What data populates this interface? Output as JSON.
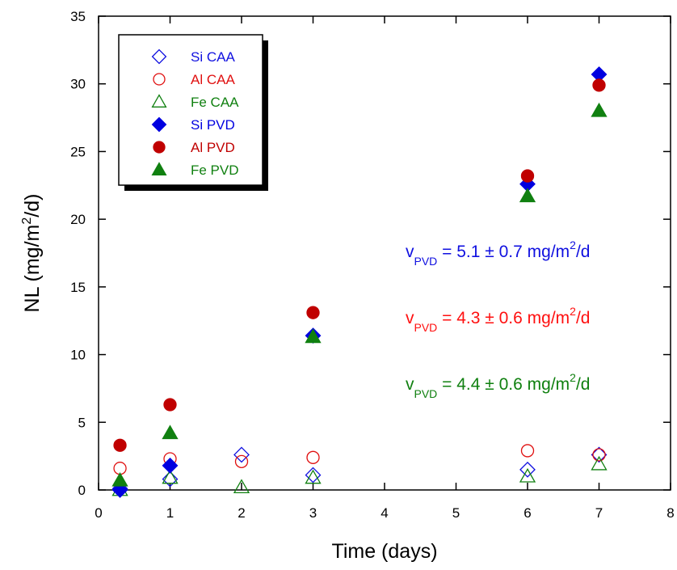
{
  "chart_data": {
    "type": "scatter",
    "x_label": "Time (days)",
    "y_label": [
      "NL (mg/m",
      "2",
      "/d)"
    ],
    "xlim": [
      0,
      8
    ],
    "xticks": [
      0,
      1,
      2,
      3,
      4,
      5,
      6,
      7,
      8
    ],
    "ylim": [
      0,
      35
    ],
    "yticks": [
      0,
      5,
      10,
      15,
      20,
      25,
      30,
      35
    ],
    "legend": "upper left",
    "series": [
      {
        "name": "Si CAA",
        "color": "#1010e0",
        "marker": "diamond",
        "filled": false,
        "x": [
          0.3,
          1,
          2,
          3,
          6,
          7
        ],
        "values": [
          0.1,
          0.8,
          2.6,
          1.1,
          1.5,
          2.6
        ]
      },
      {
        "name": "Al CAA",
        "color": "#e01010",
        "marker": "circle",
        "filled": false,
        "x": [
          0.3,
          1,
          2,
          3,
          6,
          7
        ],
        "values": [
          1.6,
          2.3,
          2.1,
          2.4,
          2.9,
          2.6
        ]
      },
      {
        "name": "Fe CAA",
        "color": "#108010",
        "marker": "triangle",
        "filled": false,
        "x": [
          0.3,
          1,
          2,
          3,
          6,
          7
        ],
        "values": [
          0,
          0.9,
          0.2,
          0.9,
          1.0,
          1.9
        ]
      },
      {
        "name": "Si PVD",
        "color": "#0000e0",
        "marker": "diamond",
        "filled": true,
        "x": [
          0.3,
          1,
          3,
          6,
          7
        ],
        "values": [
          0,
          1.8,
          11.4,
          22.6,
          30.7
        ]
      },
      {
        "name": "Al PVD",
        "color": "#c00000",
        "marker": "circle",
        "filled": true,
        "x": [
          0.3,
          1,
          3,
          6,
          7
        ],
        "values": [
          3.3,
          6.3,
          13.1,
          23.2,
          29.9
        ]
      },
      {
        "name": "Fe PVD",
        "color": "#108010",
        "marker": "triangle",
        "filled": true,
        "x": [
          0.3,
          1,
          3,
          6,
          7
        ],
        "values": [
          0.7,
          4.2,
          11.3,
          21.7,
          28.0
        ]
      }
    ],
    "annotations": [
      {
        "color": "#1010e0",
        "parts": [
          "v",
          "PVD",
          " = 5.1 ± 0.7 mg/m",
          "2",
          "/d"
        ]
      },
      {
        "color": "#ff1010",
        "parts": [
          "v",
          "PVD",
          " = 4.3 ± 0.6 mg/m",
          "2",
          "/d"
        ]
      },
      {
        "color": "#108010",
        "parts": [
          "v",
          "PVD",
          " = 4.4 ± 0.6 mg/m",
          "2",
          "/d"
        ]
      }
    ]
  }
}
